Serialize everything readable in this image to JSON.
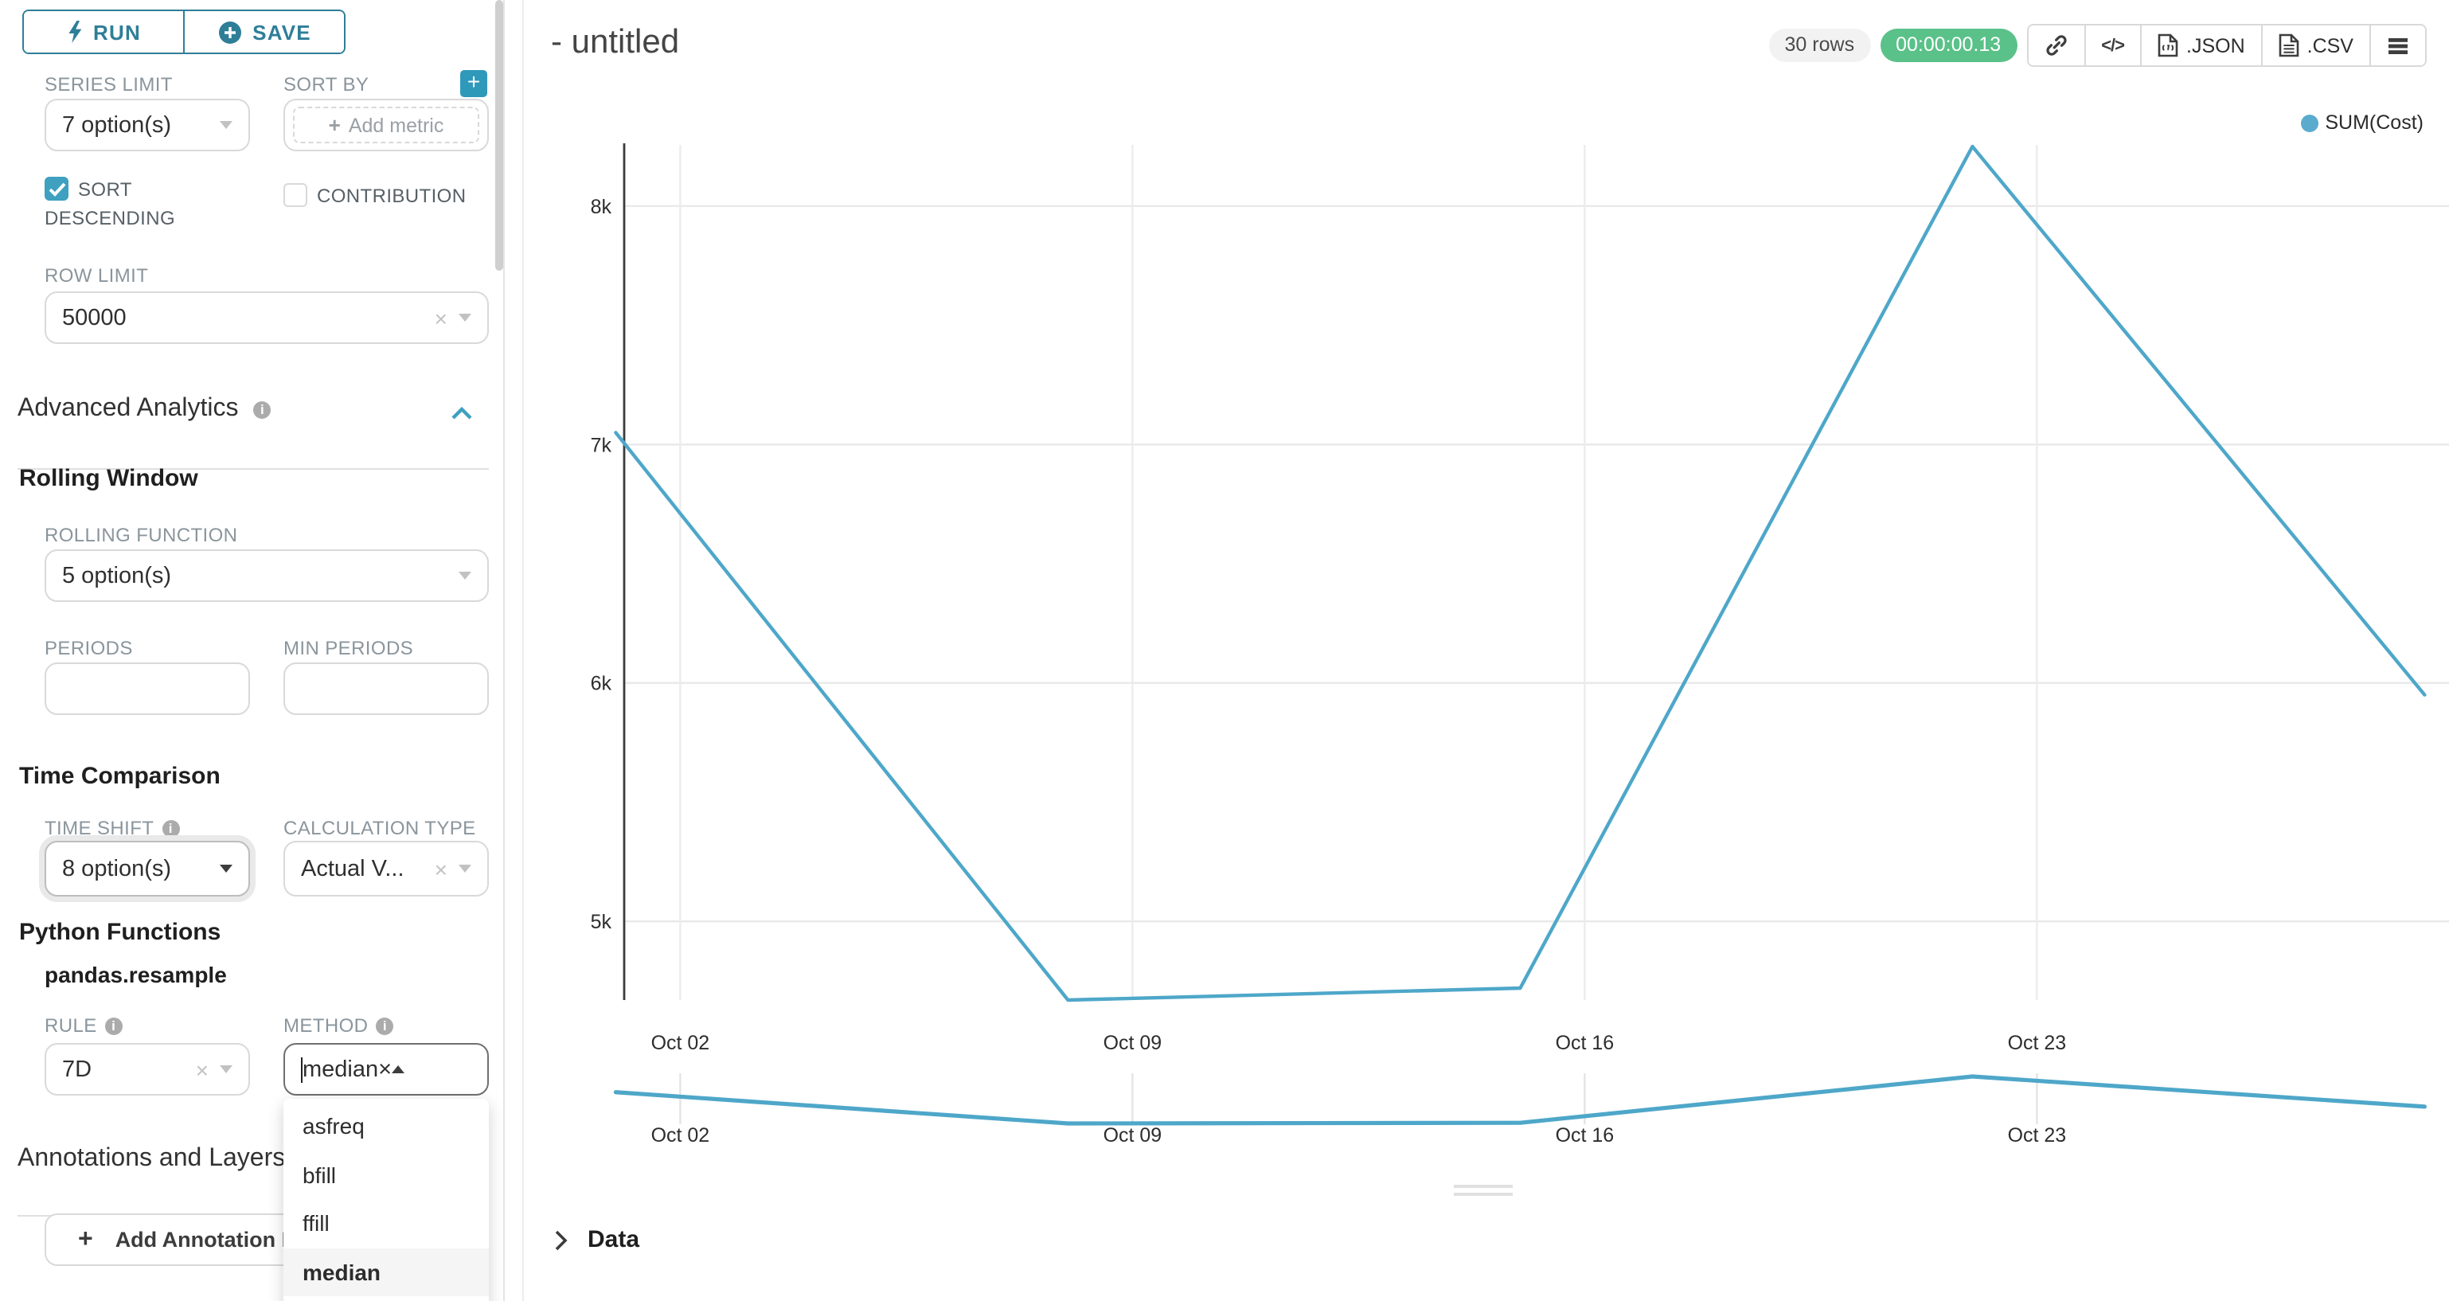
{
  "colors": {
    "primary_button": "#2e7e98",
    "accent": "#3fa0c0",
    "timer_green": "#5ac189",
    "line": "#4ea7c9",
    "legend_dot": "#5aabce"
  },
  "sidebar": {
    "run_button": "RUN",
    "save_button": "SAVE",
    "series_limit": {
      "label": "SERIES LIMIT",
      "value": "7 option(s)"
    },
    "sort_by": {
      "label": "SORT BY",
      "placeholder": "Add metric"
    },
    "sort_descending": {
      "label": "SORT DESCENDING",
      "checked": true
    },
    "contribution": {
      "label": "CONTRIBUTION",
      "checked": false
    },
    "row_limit": {
      "label": "ROW LIMIT",
      "value": "50000"
    },
    "advanced_analytics_title": "Advanced Analytics",
    "rolling_window_title": "Rolling Window",
    "rolling_function": {
      "label": "ROLLING FUNCTION",
      "value": "5 option(s)"
    },
    "periods": {
      "label": "PERIODS",
      "value": ""
    },
    "min_periods": {
      "label": "MIN PERIODS",
      "value": ""
    },
    "time_comparison_title": "Time Comparison",
    "time_shift": {
      "label": "TIME SHIFT",
      "value": "8 option(s)"
    },
    "calculation_type": {
      "label": "CALCULATION TYPE",
      "value": "Actual V..."
    },
    "python_functions_title": "Python Functions",
    "pandas_resample_title": "pandas.resample",
    "rule": {
      "label": "RULE",
      "value": "7D"
    },
    "method": {
      "label": "METHOD",
      "value": "median",
      "options": [
        "asfreq",
        "bfill",
        "ffill",
        "median"
      ],
      "highlighted_option": "median"
    },
    "annotations_title": "Annotations and Layers",
    "add_annotation_button": "Add Annotation Layer"
  },
  "main": {
    "title": "- untitled",
    "rows_badge": "30 rows",
    "timer_badge": "00:00:00.13",
    "buttons": {
      "json": ".JSON",
      "csv": ".CSV"
    },
    "data_panel_label": "Data"
  },
  "chart_data": {
    "type": "line",
    "title": "",
    "series": [
      {
        "name": "SUM(Cost)",
        "x": [
          "Oct 01",
          "Oct 08",
          "Oct 15",
          "Oct 22",
          "Oct 29"
        ],
        "values": [
          7050,
          4670,
          4720,
          8250,
          5950
        ]
      }
    ],
    "x_tick_labels": [
      "Oct 02",
      "Oct 09",
      "Oct 16",
      "Oct 23"
    ],
    "y_ticks": [
      {
        "value": 8000,
        "label": "8k"
      },
      {
        "value": 7000,
        "label": "7k"
      },
      {
        "value": 6000,
        "label": "6k"
      },
      {
        "value": 5000,
        "label": "5k"
      }
    ],
    "ylim": [
      4670,
      8250
    ],
    "grid": true,
    "legend": {
      "label": "SUM(Cost)",
      "position": "top-right"
    },
    "line_color": "#4ea7c9",
    "has_mini_navigator": true
  }
}
